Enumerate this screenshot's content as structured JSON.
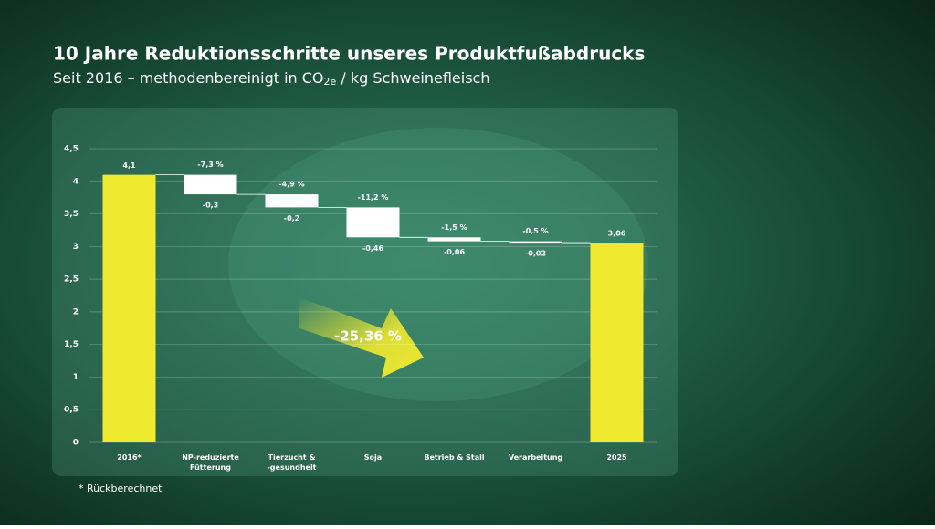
{
  "chart_data": {
    "type": "waterfall",
    "title": "10 Jahre Reduktionsschritte unseres Produktfußabdrucks",
    "subtitle": [
      "Seit 2016 – methodenbereinigt in CO",
      "2e",
      " / kg Schweinefleisch"
    ],
    "categories": [
      "2016*",
      "NP-reduzierte\nFütterung",
      "Tierzucht &\n-gesundheit",
      "Soja",
      "Betrieb & Stall",
      "Verarbeitung",
      "2025"
    ],
    "values": [
      4.1,
      -0.3,
      -0.2,
      -0.46,
      -0.06,
      -0.02,
      3.06
    ],
    "value_labels": [
      "4,1",
      "-0,3",
      "-0,2",
      "-0,46",
      "-0,06",
      "-0,02",
      "3,06"
    ],
    "change_labels": [
      null,
      "-7,3 %",
      "-4,9 %",
      "-11,2 %",
      "-1,5 %",
      "-0,5 %",
      null
    ],
    "total_color": "#efe92f",
    "change_color": "#ffffff",
    "ylim": [
      0,
      4.5
    ],
    "yticks": [
      0,
      {
        "value": 0.5,
        "label": "0,5"
      },
      1,
      {
        "value": 1.5,
        "label": "1,5"
      },
      2,
      {
        "value": 2.5,
        "label": "2,5"
      },
      3,
      {
        "value": 3.5,
        "label": "3,5"
      },
      4,
      {
        "value": 4.5,
        "label": "4,5"
      }
    ],
    "grid": true,
    "annotation": "-25,36 %",
    "footnote": "* Rückberechnet"
  }
}
